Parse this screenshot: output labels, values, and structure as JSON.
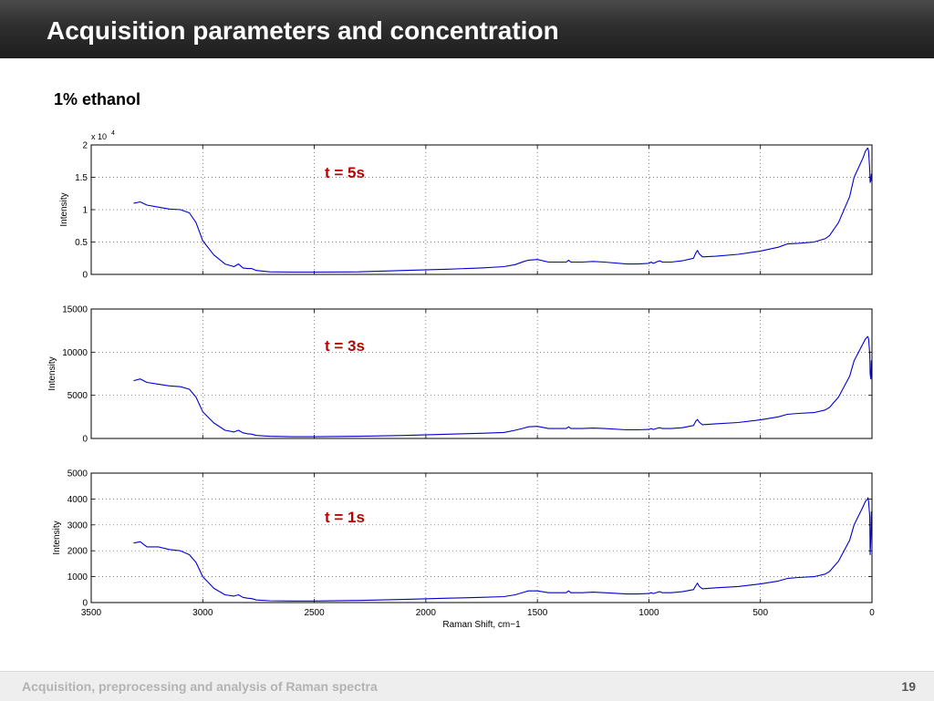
{
  "header": {
    "title": "Acquisition parameters and concentration"
  },
  "subtitle": "1% ethanol",
  "footer": {
    "text": "Acquisition, preprocessing and analysis of Raman spectra",
    "page_number": "19"
  },
  "colors": {
    "line": "#0000d0",
    "annotation": "#c00000",
    "header_bg": "#2b2b2b"
  },
  "chart_data": [
    {
      "type": "line",
      "annotation": "t = 5s",
      "ylabel": "Intensity",
      "xlabel": "",
      "y_exponent_label": "x 10",
      "y_exponent_power": "4",
      "xlim": [
        3500,
        0
      ],
      "ylim": [
        0,
        2
      ],
      "yticks": [
        0,
        0.5,
        1,
        1.5,
        2
      ],
      "ytick_labels": [
        "0",
        "0.5",
        "1",
        "1.5",
        "2"
      ],
      "xticks": [
        3500,
        3000,
        2500,
        2000,
        1500,
        1000,
        500,
        0
      ],
      "grid": true,
      "series": [
        {
          "x": [
            3310,
            3280,
            3250,
            3200,
            3150,
            3100,
            3060,
            3030,
            3000,
            2950,
            2900,
            2860,
            2840,
            2820,
            2800,
            2780,
            2760,
            2700,
            2600,
            2500,
            2300,
            2100,
            1900,
            1750,
            1650,
            1600,
            1560,
            1540,
            1500,
            1450,
            1400,
            1370,
            1360,
            1350,
            1300,
            1250,
            1200,
            1100,
            1050,
            1000,
            990,
            980,
            960,
            950,
            940,
            920,
            900,
            850,
            800,
            790,
            782,
            775,
            760,
            700,
            600,
            500,
            420,
            380,
            330,
            260,
            210,
            190,
            150,
            100,
            80,
            40,
            30,
            20,
            18,
            15,
            10,
            8,
            5,
            3,
            0
          ],
          "y": [
            1.1,
            1.12,
            1.07,
            1.04,
            1.01,
            1.0,
            0.95,
            0.8,
            0.52,
            0.3,
            0.16,
            0.12,
            0.16,
            0.1,
            0.09,
            0.09,
            0.06,
            0.04,
            0.035,
            0.035,
            0.04,
            0.06,
            0.08,
            0.1,
            0.12,
            0.15,
            0.2,
            0.22,
            0.23,
            0.19,
            0.19,
            0.19,
            0.22,
            0.19,
            0.19,
            0.2,
            0.19,
            0.16,
            0.16,
            0.17,
            0.19,
            0.17,
            0.2,
            0.21,
            0.19,
            0.19,
            0.19,
            0.21,
            0.25,
            0.33,
            0.37,
            0.32,
            0.27,
            0.28,
            0.31,
            0.36,
            0.42,
            0.47,
            0.48,
            0.5,
            0.55,
            0.6,
            0.8,
            1.2,
            1.5,
            1.8,
            1.9,
            1.95,
            1.95,
            1.9,
            1.6,
            1.42,
            1.45,
            1.55,
            1.55
          ]
        }
      ]
    },
    {
      "type": "line",
      "annotation": "t = 3s",
      "ylabel": "Intensity",
      "xlabel": "",
      "xlim": [
        3500,
        0
      ],
      "ylim": [
        0,
        15000
      ],
      "yticks": [
        0,
        5000,
        10000,
        15000
      ],
      "ytick_labels": [
        "0",
        "5000",
        "10000",
        "15000"
      ],
      "xticks": [
        3500,
        3000,
        2500,
        2000,
        1500,
        1000,
        500,
        0
      ],
      "grid": true,
      "series": [
        {
          "x": [
            3310,
            3280,
            3250,
            3200,
            3150,
            3100,
            3060,
            3030,
            3000,
            2950,
            2900,
            2860,
            2840,
            2820,
            2800,
            2780,
            2760,
            2700,
            2600,
            2500,
            2300,
            2100,
            1900,
            1750,
            1650,
            1600,
            1560,
            1540,
            1500,
            1450,
            1400,
            1370,
            1360,
            1350,
            1300,
            1250,
            1200,
            1100,
            1050,
            1000,
            990,
            980,
            960,
            950,
            940,
            920,
            900,
            850,
            800,
            790,
            782,
            775,
            760,
            700,
            600,
            500,
            420,
            380,
            330,
            260,
            210,
            190,
            150,
            100,
            80,
            40,
            30,
            20,
            18,
            15,
            10,
            8,
            5,
            3,
            0
          ],
          "y": [
            6700,
            6900,
            6500,
            6300,
            6100,
            6000,
            5700,
            4800,
            3100,
            1800,
            950,
            750,
            950,
            650,
            550,
            500,
            350,
            250,
            200,
            200,
            250,
            350,
            500,
            600,
            700,
            950,
            1200,
            1350,
            1400,
            1150,
            1150,
            1150,
            1350,
            1150,
            1150,
            1200,
            1150,
            1000,
            1000,
            1050,
            1150,
            1050,
            1200,
            1250,
            1150,
            1150,
            1150,
            1250,
            1500,
            2000,
            2200,
            1900,
            1600,
            1700,
            1850,
            2150,
            2500,
            2800,
            2900,
            3000,
            3300,
            3600,
            4800,
            7200,
            9000,
            11000,
            11500,
            11800,
            11800,
            11500,
            9800,
            7500,
            6900,
            9000,
            8900
          ]
        }
      ]
    },
    {
      "type": "line",
      "annotation": "t = 1s",
      "ylabel": "Intensity",
      "xlabel": "Raman Shift, cm−1",
      "xlim": [
        3500,
        0
      ],
      "ylim": [
        0,
        5000
      ],
      "yticks": [
        0,
        1000,
        2000,
        3000,
        4000,
        5000
      ],
      "ytick_labels": [
        "0",
        "1000",
        "2000",
        "3000",
        "4000",
        "5000"
      ],
      "xticks": [
        3500,
        3000,
        2500,
        2000,
        1500,
        1000,
        500,
        0
      ],
      "xtick_labels": [
        "3500",
        "3000",
        "2500",
        "2000",
        "1500",
        "1000",
        "500",
        "0"
      ],
      "grid": true,
      "series": [
        {
          "x": [
            3310,
            3280,
            3250,
            3200,
            3150,
            3100,
            3060,
            3030,
            3000,
            2950,
            2900,
            2860,
            2840,
            2820,
            2800,
            2780,
            2760,
            2700,
            2600,
            2500,
            2300,
            2100,
            1900,
            1750,
            1650,
            1600,
            1560,
            1540,
            1500,
            1450,
            1400,
            1370,
            1360,
            1350,
            1300,
            1250,
            1200,
            1100,
            1050,
            1000,
            990,
            980,
            960,
            950,
            940,
            920,
            900,
            850,
            800,
            790,
            782,
            775,
            760,
            700,
            600,
            500,
            420,
            380,
            330,
            260,
            210,
            190,
            150,
            100,
            80,
            40,
            30,
            20,
            18,
            15,
            10,
            8,
            5,
            3,
            0
          ],
          "y": [
            2300,
            2350,
            2150,
            2150,
            2050,
            2000,
            1850,
            1550,
            1000,
            550,
            300,
            250,
            300,
            200,
            170,
            150,
            100,
            70,
            60,
            60,
            80,
            120,
            170,
            200,
            230,
            300,
            400,
            450,
            450,
            380,
            380,
            380,
            450,
            380,
            380,
            400,
            380,
            330,
            330,
            350,
            380,
            350,
            400,
            420,
            380,
            380,
            380,
            420,
            500,
            650,
            750,
            630,
            530,
            570,
            620,
            720,
            830,
            930,
            970,
            1000,
            1100,
            1200,
            1600,
            2400,
            3000,
            3700,
            3900,
            4000,
            4050,
            3900,
            3300,
            1850,
            2500,
            3500,
            3300
          ]
        }
      ]
    }
  ]
}
